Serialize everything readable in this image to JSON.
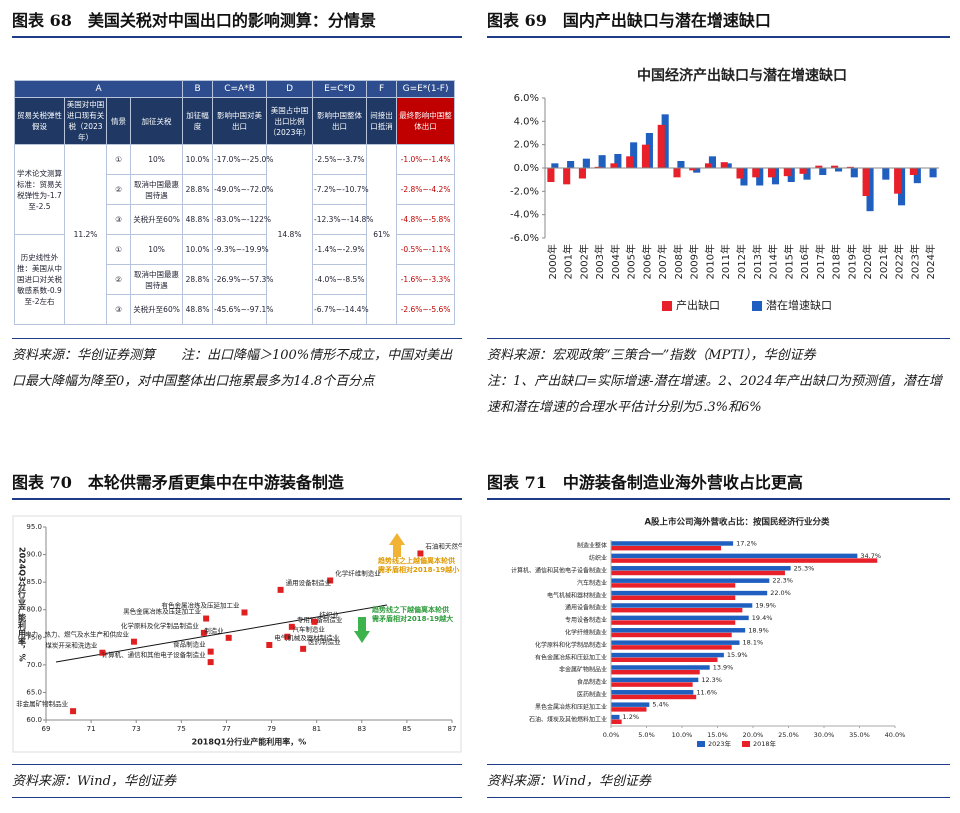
{
  "panels": [
    {
      "title": "图表 68　美国关税对中国出口的影响测算：分情景",
      "source": "资料来源：华创证券测算　　注：出口降幅＞100%情形不成立，中国对美出口最大降幅为降至0，对中国整体出口拖累最多为14.8个百分点"
    },
    {
      "title": "图表 69　国内产出缺口与潜在增速缺口",
      "source": "资料来源：宏观政策“三策合一”指数（MPTI），华创证券",
      "note": "注：1、产出缺口=实际增速-潜在增速。2、2024年产出缺口为预测值，潜在增速和潜在增速的合理水平估计分别为5.3%和6%"
    },
    {
      "title": "图表 70　本轮供需矛盾更集中在中游装备制造",
      "source": "资料来源：Wind，华创证券"
    },
    {
      "title": "图表 71　中游装备制造业海外营收占比更高",
      "source": "资料来源：Wind，华创证券"
    }
  ],
  "table": {
    "letters": [
      "A",
      "B",
      "C=A*B",
      "D",
      "E=C*D",
      "F",
      "G=E*(1-F)"
    ],
    "headers": [
      "贸易关税弹性假设",
      "美国对中国进口现有关税（2023年）",
      "情景",
      "加征关税",
      "加征幅度",
      "影响中国对美出口",
      "美国占中国出口比例（2023年）",
      "影响中国整体出口",
      "间接出口抵消",
      "最终影响中国整体出口"
    ],
    "groups": [
      "学术论文测算标准：贸易关税弹性为-1.7至-2.5",
      "历史线性外推：美国从中国进口对关税敏感系数-0.9至-2左右"
    ],
    "existing_tariff": "11.2%",
    "us_share": "14.8%",
    "offset": "61%",
    "rows": [
      [
        "①",
        "10%",
        "10.0%",
        "-17.0%~-25.0%",
        "-2.5%~-3.7%",
        "-1.0%~-1.4%"
      ],
      [
        "②",
        "取消中国最惠国待遇",
        "28.8%",
        "-49.0%~-72.0%",
        "-7.2%~-10.7%",
        "-2.8%~-4.2%"
      ],
      [
        "③",
        "关税升至60%",
        "48.8%",
        "-83.0%~-122%",
        "-12.3%~-14.8%",
        "-4.8%~-5.8%"
      ],
      [
        "①",
        "10%",
        "10.0%",
        "-9.3%~-19.9%",
        "-1.4%~-2.9%",
        "-0.5%~-1.1%"
      ],
      [
        "②",
        "取消中国最惠国待遇",
        "28.8%",
        "-26.9%~-57.3%",
        "-4.0%~-8.5%",
        "-1.6%~-3.3%"
      ],
      [
        "③",
        "关税升至60%",
        "48.8%",
        "-45.6%~-97.1%",
        "-6.7%~-14.4%",
        "-2.6%~-5.6%"
      ]
    ]
  },
  "chart_data": [
    {
      "type": "bar",
      "title": "中国经济产出缺口与潜在增速缺口",
      "categories": [
        "2000年",
        "2001年",
        "2002年",
        "2003年",
        "2004年",
        "2005年",
        "2006年",
        "2007年",
        "2008年",
        "2009年",
        "2010年",
        "2011年",
        "2012年",
        "2013年",
        "2014年",
        "2015年",
        "2016年",
        "2017年",
        "2018年",
        "2019年",
        "2020年",
        "2021年",
        "2022年",
        "2023年",
        "2024年"
      ],
      "series": [
        {
          "name": "产出缺口",
          "color": "#e8202a",
          "values": [
            -1.2,
            -1.4,
            -0.9,
            0.1,
            0.4,
            1.0,
            2.0,
            3.7,
            -0.8,
            -0.2,
            0.4,
            0.5,
            -0.9,
            -0.8,
            -0.8,
            -0.7,
            -0.5,
            0.2,
            0.2,
            0.1,
            -2.4,
            0.0,
            -2.2,
            -0.6,
            0.0
          ]
        },
        {
          "name": "潜在增速缺口",
          "color": "#1f5fbf",
          "values": [
            0.4,
            0.6,
            0.8,
            1.1,
            1.2,
            2.2,
            3.0,
            4.6,
            0.6,
            -0.4,
            1.0,
            0.4,
            -1.5,
            -1.5,
            -1.4,
            -1.2,
            -1.0,
            -0.6,
            -0.3,
            -0.8,
            -3.7,
            -1.0,
            -3.2,
            -1.3,
            -0.8
          ]
        }
      ],
      "ylim": [
        -6,
        6
      ],
      "yticks": [
        {
          "value": -6,
          "label": "-6.0%"
        },
        {
          "value": -4,
          "label": "-4.0%"
        },
        {
          "value": -2,
          "label": "-2.0%"
        },
        {
          "value": 0,
          "label": "0.0%"
        },
        {
          "value": 2,
          "label": "2.0%"
        },
        {
          "value": 4,
          "label": "4.0%"
        },
        {
          "value": 6,
          "label": "6.0%"
        }
      ],
      "grid": false,
      "legend": "bottom"
    },
    {
      "type": "scatter",
      "xlabel": "2018Q1分行业产能利用率，%",
      "ylabel": "2024Q3分行业产能利用率，%",
      "color": "#e02020",
      "labels": [
        "石油和天然气开采业",
        "化学纤维制造业",
        "通用设备制造业",
        "有色金属冶炼及压延加工业",
        "黑色金属冶炼及压延加工业",
        "化学原料及化学制品制造业",
        "专用设备制造业",
        "纺织业",
        "汽车制造业",
        "制造业",
        "煤炭开采和洗选业",
        "电力、热力、燃气及水生产和供应业",
        "非金属矿物制品业",
        "食品制造业",
        "计算机、通信和其他电子设备制造业",
        "电气机械及器材制造业",
        "医药制造业"
      ],
      "x": [
        85.6,
        81.6,
        79.4,
        77.8,
        76.1,
        76.0,
        79.9,
        80.9,
        79.7,
        77.1,
        71.5,
        72.9,
        70.2,
        76.3,
        76.3,
        78.9,
        80.4
      ],
      "values": [
        90.2,
        85.3,
        83.6,
        79.5,
        78.4,
        75.8,
        76.9,
        77.8,
        75.1,
        74.9,
        72.2,
        74.2,
        61.6,
        72.4,
        70.5,
        73.6,
        72.9
      ],
      "xlim": [
        69,
        87
      ],
      "xticks": [
        69,
        71,
        73,
        75,
        77,
        79,
        81,
        83,
        85,
        87
      ],
      "ylim": [
        60,
        95
      ],
      "yticks": [
        {
          "value": 60,
          "label": "60.0"
        },
        {
          "value": 65,
          "label": "65.0"
        },
        {
          "value": 70,
          "label": "70.0"
        },
        {
          "value": 75,
          "label": "75.0"
        },
        {
          "value": 80,
          "label": "80.0"
        },
        {
          "value": 85,
          "label": "85.0"
        },
        {
          "value": 90,
          "label": "90.0"
        },
        {
          "value": 95,
          "label": "95.0"
        }
      ],
      "annotations": [
        "趋势线之上越偏离本轮供需矛盾相对2018-19越小",
        "趋势线之下越偏离本轮供需矛盾相对2018-19越大"
      ]
    },
    {
      "type": "hbar",
      "title": "A股上市公司海外营收占比：按国民经济行业分类",
      "categories": [
        "制造业整体",
        "纺织业",
        "计算机、通信和其他电子设备制造业",
        "汽车制造业",
        "电气机械和器材制造业",
        "通用设备制造业",
        "专用设备制造业",
        "化学纤维制造业",
        "化学原料和化学制品制造业",
        "有色金属冶炼和压延加工业",
        "非金属矿物制品业",
        "食品制造业",
        "医药制造业",
        "黑色金属冶炼和压延加工业",
        "石油、煤炭及其他燃料加工业"
      ],
      "series": [
        {
          "name": "2023年",
          "color": "#1f5fbf",
          "values": [
            17.2,
            34.7,
            25.3,
            22.3,
            22.0,
            19.9,
            19.4,
            18.9,
            18.1,
            15.9,
            13.9,
            12.3,
            11.6,
            5.4,
            1.2
          ],
          "value_labels": [
            "17.2%",
            "34.7%",
            "25.3%",
            "22.3%",
            "22.0%",
            "19.9%",
            "19.4%",
            "18.9%",
            "18.1%",
            "15.9%",
            "13.9%",
            "12.3%",
            "11.6%",
            "5.4%",
            "1.2%"
          ]
        },
        {
          "name": "2018年",
          "color": "#e8202a",
          "values": [
            15.5,
            37.5,
            24.5,
            17.5,
            17.5,
            18.5,
            17.5,
            17.0,
            17.0,
            15.0,
            12.5,
            11.5,
            12.0,
            5.0,
            1.5
          ]
        }
      ],
      "xlim": [
        0,
        40
      ],
      "xticks": [
        {
          "value": 0,
          "label": "0.0%"
        },
        {
          "value": 5,
          "label": "5.0%"
        },
        {
          "value": 10,
          "label": "10.0%"
        },
        {
          "value": 15,
          "label": "15.0%"
        },
        {
          "value": 20,
          "label": "20.0%"
        },
        {
          "value": 25,
          "label": "25.0%"
        },
        {
          "value": 30,
          "label": "30.0%"
        },
        {
          "value": 35,
          "label": "35.0%"
        },
        {
          "value": 40,
          "label": "40.0%"
        }
      ],
      "legend": "bottom"
    }
  ]
}
